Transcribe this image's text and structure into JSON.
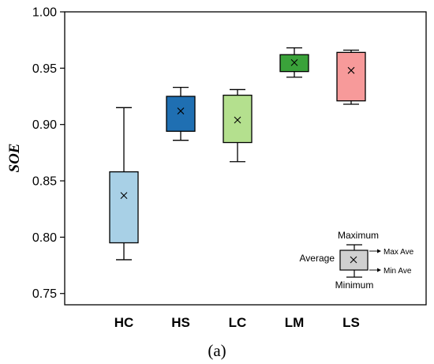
{
  "chart_data": {
    "type": "box",
    "categories": [
      "HC",
      "HS",
      "LC",
      "LM",
      "LS"
    ],
    "ylabel": "SOE",
    "xlabel": "",
    "ylim": [
      0.74,
      1.0
    ],
    "yticks": [
      "0.75",
      "0.80",
      "0.85",
      "0.90",
      "0.95",
      "1.00"
    ],
    "boxes": [
      {
        "name": "HC",
        "min": 0.78,
        "q1": 0.795,
        "q3": 0.858,
        "max": 0.915,
        "mean": 0.837,
        "color": "#a8d0e6"
      },
      {
        "name": "HS",
        "min": 0.886,
        "q1": 0.894,
        "q3": 0.925,
        "max": 0.933,
        "mean": 0.912,
        "color": "#1f6fb2"
      },
      {
        "name": "LC",
        "min": 0.867,
        "q1": 0.884,
        "q3": 0.926,
        "max": 0.931,
        "mean": 0.904,
        "color": "#b4e08e"
      },
      {
        "name": "LM",
        "min": 0.942,
        "q1": 0.947,
        "q3": 0.962,
        "max": 0.968,
        "mean": 0.955,
        "color": "#3aa23a"
      },
      {
        "name": "LS",
        "min": 0.918,
        "q1": 0.921,
        "q3": 0.964,
        "max": 0.966,
        "mean": 0.948,
        "color": "#f79a9a"
      }
    ],
    "legend": {
      "maximum": "Maximum",
      "minimum": "Minimum",
      "average": "Average",
      "max_ave": "Max Ave",
      "min_ave": "Min Ave",
      "position": "bottom-right"
    }
  },
  "caption": "(a)"
}
